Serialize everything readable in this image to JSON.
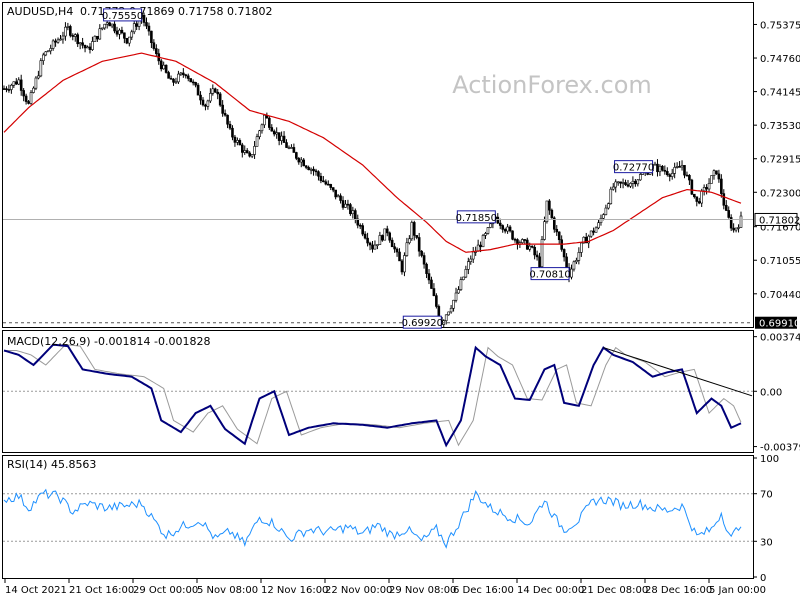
{
  "header": {
    "symbol": "AUDUSD,H4",
    "ohlc": "0.71772 0.71869 0.71758 0.71802"
  },
  "watermark": "ActionForex.com",
  "colors": {
    "candles": "#000000",
    "sma": "#d40000",
    "macd": "#00007a",
    "signal": "#9a9a9a",
    "rsi": "#1e90ff",
    "trendline": "#000000",
    "grid": "#9a9a9a"
  },
  "chart_data": [
    {
      "type": "candlestick",
      "panel": "price",
      "symbol": "AUDUSD",
      "timeframe": "H4",
      "ylim": [
        0.6985,
        0.7575
      ],
      "yticks": [
        "0.75375",
        "0.74760",
        "0.74145",
        "0.73530",
        "0.72915",
        "0.72300",
        "0.71670",
        "0.71055",
        "0.70440"
      ],
      "xticks": [
        "14 Oct 2021",
        "21 Oct 16:00",
        "29 Oct 00:00",
        "5 Nov 08:00",
        "12 Nov 16:00",
        "22 Nov 00:00",
        "29 Nov 08:00",
        "6 Dec 16:00",
        "14 Dec 00:00",
        "21 Dec 08:00",
        "28 Dec 16:00",
        "5 Jan 00:00"
      ],
      "current_price": "0.71802",
      "support_price": "0.69910",
      "anchors": [
        [
          0,
          0.742
        ],
        [
          6,
          0.7435
        ],
        [
          10,
          0.739
        ],
        [
          16,
          0.748
        ],
        [
          26,
          0.753
        ],
        [
          34,
          0.749
        ],
        [
          42,
          0.7545
        ],
        [
          50,
          0.751
        ],
        [
          56,
          0.7555
        ],
        [
          62,
          0.748
        ],
        [
          68,
          0.743
        ],
        [
          74,
          0.745
        ],
        [
          82,
          0.739
        ],
        [
          86,
          0.742
        ],
        [
          92,
          0.734
        ],
        [
          100,
          0.729
        ],
        [
          106,
          0.737
        ],
        [
          112,
          0.733
        ],
        [
          118,
          0.73
        ],
        [
          126,
          0.727
        ],
        [
          134,
          0.723
        ],
        [
          142,
          0.719
        ],
        [
          150,
          0.713
        ],
        [
          156,
          0.716
        ],
        [
          162,
          0.709
        ],
        [
          166,
          0.717
        ],
        [
          172,
          0.708
        ],
        [
          178,
          0.6992
        ],
        [
          184,
          0.704
        ],
        [
          190,
          0.711
        ],
        [
          196,
          0.715
        ],
        [
          200,
          0.7185
        ],
        [
          208,
          0.7145
        ],
        [
          214,
          0.713
        ],
        [
          218,
          0.71
        ],
        [
          221,
          0.721
        ],
        [
          226,
          0.714
        ],
        [
          230,
          0.7081
        ],
        [
          236,
          0.714
        ],
        [
          242,
          0.717
        ],
        [
          248,
          0.724
        ],
        [
          256,
          0.725
        ],
        [
          264,
          0.7277
        ],
        [
          272,
          0.7265
        ],
        [
          276,
          0.728
        ],
        [
          282,
          0.721
        ],
        [
          286,
          0.724
        ],
        [
          290,
          0.727
        ],
        [
          294,
          0.719
        ],
        [
          297,
          0.716
        ],
        [
          300,
          0.718
        ]
      ],
      "labels": [
        {
          "text": "0.75550",
          "price": 0.7555,
          "bar": 56
        },
        {
          "text": "0.71850",
          "price": 0.7185,
          "bar": 200
        },
        {
          "text": "0.70810",
          "price": 0.7081,
          "bar": 230
        },
        {
          "text": "0.72770",
          "price": 0.7277,
          "bar": 264
        },
        {
          "text": "0.69920",
          "price": 0.6992,
          "bar": 178
        }
      ],
      "sma_anchors": [
        [
          0,
          0.734
        ],
        [
          10,
          0.7385
        ],
        [
          24,
          0.7435
        ],
        [
          40,
          0.747
        ],
        [
          56,
          0.7485
        ],
        [
          70,
          0.747
        ],
        [
          86,
          0.743
        ],
        [
          100,
          0.738
        ],
        [
          116,
          0.736
        ],
        [
          130,
          0.733
        ],
        [
          146,
          0.728
        ],
        [
          160,
          0.722
        ],
        [
          172,
          0.7175
        ],
        [
          180,
          0.714
        ],
        [
          188,
          0.712
        ],
        [
          198,
          0.7125
        ],
        [
          208,
          0.7135
        ],
        [
          218,
          0.7135
        ],
        [
          228,
          0.7135
        ],
        [
          238,
          0.714
        ],
        [
          248,
          0.716
        ],
        [
          258,
          0.719
        ],
        [
          268,
          0.722
        ],
        [
          278,
          0.7235
        ],
        [
          288,
          0.723
        ],
        [
          300,
          0.721
        ]
      ]
    },
    {
      "type": "line",
      "panel": "macd",
      "label": "MACD(12,26,9) -0.001814 -0.001828",
      "ylim": [
        -0.0041,
        0.004
      ],
      "yticks": [
        "0.003749",
        "0.00",
        "-0.003796"
      ],
      "macd_anchors": [
        [
          0,
          0.0028
        ],
        [
          6,
          0.0025
        ],
        [
          12,
          0.0018
        ],
        [
          20,
          0.0032
        ],
        [
          26,
          0.0031
        ],
        [
          32,
          0.0015
        ],
        [
          42,
          0.0012
        ],
        [
          52,
          0.001
        ],
        [
          60,
          0.0002
        ],
        [
          64,
          -0.002
        ],
        [
          72,
          -0.0028
        ],
        [
          78,
          -0.0015
        ],
        [
          84,
          -0.001
        ],
        [
          90,
          -0.0026
        ],
        [
          98,
          -0.0036
        ],
        [
          104,
          -0.0005
        ],
        [
          110,
          0.0
        ],
        [
          116,
          -0.003
        ],
        [
          124,
          -0.0025
        ],
        [
          134,
          -0.0022
        ],
        [
          146,
          -0.0023
        ],
        [
          156,
          -0.0025
        ],
        [
          166,
          -0.0022
        ],
        [
          176,
          -0.002
        ],
        [
          180,
          -0.0037
        ],
        [
          186,
          -0.002
        ],
        [
          192,
          0.003
        ],
        [
          196,
          0.0024
        ],
        [
          202,
          0.0018
        ],
        [
          208,
          -0.0005
        ],
        [
          214,
          -0.0006
        ],
        [
          220,
          0.0015
        ],
        [
          224,
          0.0018
        ],
        [
          228,
          -0.0008
        ],
        [
          234,
          -0.001
        ],
        [
          240,
          0.0018
        ],
        [
          244,
          0.003
        ],
        [
          248,
          0.0025
        ],
        [
          256,
          0.002
        ],
        [
          264,
          0.001
        ],
        [
          270,
          0.0013
        ],
        [
          276,
          0.0015
        ],
        [
          282,
          -0.0015
        ],
        [
          288,
          -0.0005
        ],
        [
          292,
          -0.001
        ],
        [
          296,
          -0.0025
        ],
        [
          300,
          -0.0022
        ]
      ],
      "signal_lag_bars": 5,
      "trendline_macd": [
        [
          244,
          0.003
        ],
        [
          300,
          0.0001
        ]
      ]
    },
    {
      "type": "line",
      "panel": "rsi",
      "label": "RSI(14) 45.8563",
      "ylim": [
        0,
        100
      ],
      "yticks": [
        "100",
        "70",
        "30",
        "0"
      ],
      "levels": [
        70,
        30
      ],
      "rsi_anchors": [
        [
          0,
          65
        ],
        [
          6,
          68
        ],
        [
          10,
          58
        ],
        [
          16,
          70
        ],
        [
          22,
          68
        ],
        [
          28,
          55
        ],
        [
          34,
          62
        ],
        [
          42,
          58
        ],
        [
          50,
          60
        ],
        [
          56,
          62
        ],
        [
          62,
          45
        ],
        [
          66,
          35
        ],
        [
          72,
          42
        ],
        [
          80,
          48
        ],
        [
          86,
          32
        ],
        [
          92,
          38
        ],
        [
          98,
          28
        ],
        [
          104,
          50
        ],
        [
          110,
          45
        ],
        [
          116,
          32
        ],
        [
          124,
          40
        ],
        [
          132,
          38
        ],
        [
          140,
          42
        ],
        [
          146,
          36
        ],
        [
          152,
          44
        ],
        [
          158,
          35
        ],
        [
          164,
          40
        ],
        [
          170,
          30
        ],
        [
          176,
          40
        ],
        [
          180,
          28
        ],
        [
          186,
          48
        ],
        [
          192,
          70
        ],
        [
          198,
          58
        ],
        [
          204,
          52
        ],
        [
          210,
          48
        ],
        [
          214,
          45
        ],
        [
          220,
          65
        ],
        [
          224,
          50
        ],
        [
          228,
          40
        ],
        [
          234,
          48
        ],
        [
          240,
          64
        ],
        [
          246,
          65
        ],
        [
          252,
          60
        ],
        [
          258,
          62
        ],
        [
          264,
          58
        ],
        [
          270,
          56
        ],
        [
          276,
          60
        ],
        [
          282,
          34
        ],
        [
          288,
          40
        ],
        [
          292,
          54
        ],
        [
          296,
          32
        ],
        [
          300,
          46
        ]
      ]
    }
  ]
}
